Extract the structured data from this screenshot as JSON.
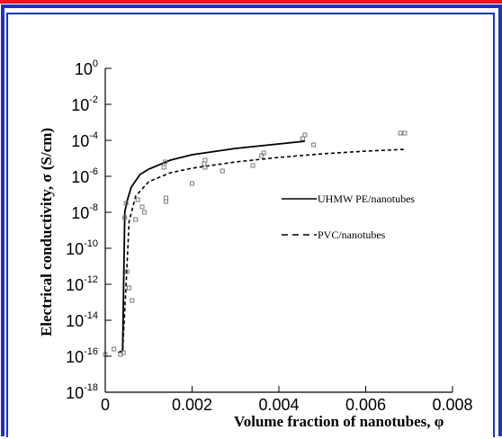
{
  "chart_data": {
    "type": "scatter",
    "xlabel": "Volume fraction of nanotubes, φ",
    "ylabel": "Electrical conductivity, σ (S/cm)",
    "xlim": [
      0,
      0.008
    ],
    "ylim_log10": [
      -18,
      0
    ],
    "x_ticks": [
      {
        "value": 0,
        "label": "0"
      },
      {
        "value": 0.002,
        "label": "0.002"
      },
      {
        "value": 0.004,
        "label": "0.004"
      },
      {
        "value": 0.006,
        "label": "0.006"
      },
      {
        "value": 0.008,
        "label": "0.008"
      }
    ],
    "y_ticks": [
      {
        "exp": 0,
        "base": "10",
        "sup": "0"
      },
      {
        "exp": -2,
        "base": "10",
        "sup": "-2"
      },
      {
        "exp": -4,
        "base": "10",
        "sup": "-4"
      },
      {
        "exp": -6,
        "base": "10",
        "sup": "-6"
      },
      {
        "exp": -8,
        "base": "10",
        "sup": "-8"
      },
      {
        "exp": -10,
        "base": "10",
        "sup": "-10"
      },
      {
        "exp": -12,
        "base": "10",
        "sup": "-12"
      },
      {
        "exp": -14,
        "base": "10",
        "sup": "-14"
      },
      {
        "exp": -16,
        "base": "10",
        "sup": "-16"
      },
      {
        "exp": -18,
        "base": "10",
        "sup": "-18"
      }
    ],
    "series": [
      {
        "name": "UHMW PE/nanotubes",
        "style": "solid",
        "line_log10": [
          [
            0.0003,
            -15.8
          ],
          [
            0.0004,
            -15.7
          ],
          [
            0.00045,
            -8
          ],
          [
            0.0005,
            -7.4
          ],
          [
            0.0006,
            -6.6
          ],
          [
            0.0008,
            -5.9
          ],
          [
            0.001,
            -5.6
          ],
          [
            0.0015,
            -5.1
          ],
          [
            0.002,
            -4.8
          ],
          [
            0.003,
            -4.45
          ],
          [
            0.004,
            -4.2
          ],
          [
            0.0046,
            -4.05
          ]
        ]
      },
      {
        "name": "PVC/nanotubes",
        "style": "dashed",
        "line_log10": [
          [
            0.0003,
            -15.8
          ],
          [
            0.0004,
            -15.7
          ],
          [
            0.00048,
            -12
          ],
          [
            0.00055,
            -8.5
          ],
          [
            0.0007,
            -7.1
          ],
          [
            0.001,
            -6.3
          ],
          [
            0.0015,
            -5.8
          ],
          [
            0.002,
            -5.55
          ],
          [
            0.003,
            -5.2
          ],
          [
            0.004,
            -4.95
          ],
          [
            0.005,
            -4.75
          ],
          [
            0.006,
            -4.6
          ],
          [
            0.0069,
            -4.5
          ]
        ]
      }
    ],
    "points_log10": [
      [
        0.0,
        -15.9
      ],
      [
        0.0002,
        -15.6
      ],
      [
        0.00035,
        -15.9
      ],
      [
        0.00042,
        -15.8
      ],
      [
        0.00045,
        -8.3
      ],
      [
        0.00048,
        -7.5
      ],
      [
        0.0005,
        -11.3
      ],
      [
        0.00055,
        -12.2
      ],
      [
        0.00062,
        -12.9
      ],
      [
        0.0007,
        -8.4
      ],
      [
        0.00075,
        -7.3
      ],
      [
        0.00085,
        -7.7
      ],
      [
        0.0009,
        -8.0
      ],
      [
        0.00135,
        -5.5
      ],
      [
        0.00138,
        -5.2
      ],
      [
        0.0014,
        -7.2
      ],
      [
        0.0014,
        -7.4
      ],
      [
        0.002,
        -6.4
      ],
      [
        0.00228,
        -5.3
      ],
      [
        0.0023,
        -5.5
      ],
      [
        0.0023,
        -5.1
      ],
      [
        0.0027,
        -5.7
      ],
      [
        0.0034,
        -5.4
      ],
      [
        0.0036,
        -4.85
      ],
      [
        0.00365,
        -4.7
      ],
      [
        0.0046,
        -3.7
      ],
      [
        0.00455,
        -3.9
      ],
      [
        0.0048,
        -4.25
      ],
      [
        0.0068,
        -3.6
      ],
      [
        0.0069,
        -3.6
      ]
    ]
  },
  "colors": {
    "frame_blue": "#1b31c9",
    "top_red": "#e8151b",
    "ink": "#000000",
    "marker": "#7a7a7a"
  }
}
